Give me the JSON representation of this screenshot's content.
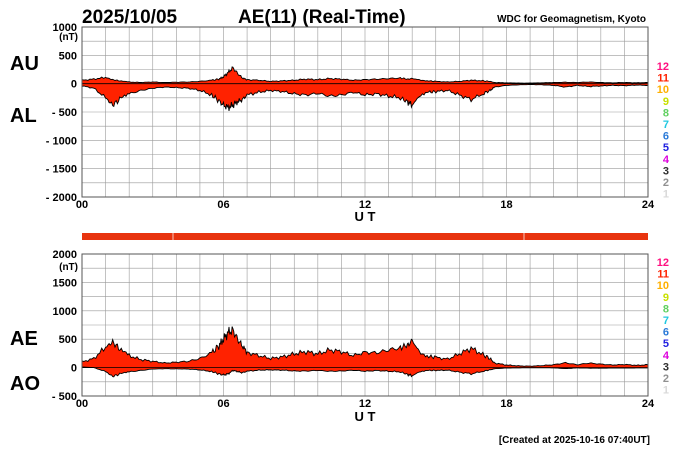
{
  "header": {
    "date": "2025/10/05",
    "title": "AE(11) (Real-Time)",
    "source": "WDC for Geomagnetism, Kyoto"
  },
  "footer": {
    "created": "[Created at 2025-10-16 07:40UT]"
  },
  "colors": {
    "fill": "#ff2200",
    "status_bar": "#e8340f",
    "grid": "#9a9a9a",
    "station_colors": [
      "#d9d9d9",
      "#909090",
      "#303030",
      "#dd00dd",
      "#2020e0",
      "#2a7ad8",
      "#20c8e0",
      "#60d060",
      "#c8e000",
      "#ffb000",
      "#ff2200",
      "#ff1080"
    ]
  },
  "station_count_labels": [
    "1",
    "2",
    "3",
    "4",
    "5",
    "6",
    "7",
    "8",
    "9",
    "10",
    "11",
    "12"
  ],
  "chart_data": [
    {
      "type": "area",
      "name": "AU/AL",
      "left_labels": [
        "AU",
        "AL"
      ],
      "unit": "(nT)",
      "xlabel": "U T",
      "x_ticks": [
        "00",
        "06",
        "12",
        "18",
        "24"
      ],
      "xlim": [
        0,
        24
      ],
      "ylim": [
        -2000,
        1000
      ],
      "y_ticks": [
        1000,
        500,
        0,
        -500,
        -1000,
        -1500,
        -2000
      ],
      "y_tick_labels": [
        "1000",
        "500",
        "0",
        "- 500",
        "- 1000",
        "- 1500",
        "- 2000"
      ],
      "grid": true,
      "x_hours": [
        0,
        0.5,
        1,
        1.3,
        1.6,
        2,
        2.5,
        3,
        3.5,
        4,
        4.5,
        5,
        5.5,
        5.8,
        6,
        6.2,
        6.4,
        6.6,
        6.8,
        7,
        7.5,
        8,
        8.5,
        9,
        9.5,
        10,
        10.5,
        11,
        11.5,
        12,
        12.5,
        13,
        13.5,
        13.8,
        14,
        14.3,
        14.7,
        15,
        15.5,
        16,
        16.5,
        17,
        17.3,
        17.5,
        18,
        18.5,
        19,
        19.5,
        20,
        20.5,
        21,
        21.5,
        22,
        22.5,
        23,
        23.5,
        24
      ],
      "series": [
        {
          "label": "AU",
          "values": [
            60,
            80,
            110,
            70,
            50,
            30,
            20,
            30,
            20,
            25,
            30,
            40,
            60,
            80,
            120,
            200,
            280,
            180,
            100,
            70,
            60,
            40,
            50,
            60,
            80,
            70,
            90,
            80,
            60,
            70,
            80,
            90,
            100,
            80,
            90,
            70,
            50,
            40,
            30,
            40,
            60,
            50,
            40,
            20,
            15,
            10,
            10,
            15,
            20,
            25,
            20,
            30,
            20,
            15,
            20,
            15,
            20
          ]
        },
        {
          "label": "AL",
          "values": [
            -40,
            -80,
            -250,
            -380,
            -280,
            -180,
            -120,
            -80,
            -60,
            -70,
            -80,
            -120,
            -200,
            -300,
            -380,
            -420,
            -380,
            -320,
            -280,
            -200,
            -150,
            -120,
            -140,
            -180,
            -200,
            -170,
            -220,
            -200,
            -150,
            -200,
            -180,
            -220,
            -250,
            -320,
            -380,
            -220,
            -150,
            -140,
            -120,
            -200,
            -280,
            -180,
            -120,
            -60,
            -30,
            -20,
            -15,
            -20,
            -30,
            -60,
            -30,
            -50,
            -40,
            -30,
            -35,
            -25,
            -30
          ]
        }
      ]
    },
    {
      "type": "area",
      "name": "AE/AO",
      "left_labels": [
        "AE",
        "AO"
      ],
      "unit": "(nT)",
      "xlabel": "U T",
      "x_ticks": [
        "00",
        "06",
        "12",
        "18",
        "24"
      ],
      "xlim": [
        0,
        24
      ],
      "ylim": [
        -500,
        2000
      ],
      "y_ticks": [
        2000,
        1500,
        1000,
        500,
        0,
        -500
      ],
      "y_tick_labels": [
        "2000",
        "1500",
        "1000",
        "500",
        "0",
        "- 500"
      ],
      "grid": true,
      "x_hours": [
        0,
        0.5,
        1,
        1.3,
        1.6,
        2,
        2.5,
        3,
        3.5,
        4,
        4.5,
        5,
        5.5,
        5.8,
        6,
        6.2,
        6.4,
        6.6,
        6.8,
        7,
        7.5,
        8,
        8.5,
        9,
        9.5,
        10,
        10.5,
        11,
        11.5,
        12,
        12.5,
        13,
        13.5,
        13.8,
        14,
        14.3,
        14.7,
        15,
        15.5,
        16,
        16.5,
        17,
        17.3,
        17.5,
        18,
        18.5,
        19,
        19.5,
        20,
        20.5,
        21,
        21.5,
        22,
        22.5,
        23,
        23.5,
        24
      ],
      "series": [
        {
          "label": "AE",
          "values": [
            100,
            160,
            360,
            450,
            330,
            210,
            140,
            110,
            80,
            95,
            110,
            160,
            260,
            380,
            500,
            620,
            660,
            500,
            380,
            270,
            210,
            160,
            190,
            240,
            280,
            240,
            310,
            280,
            210,
            270,
            260,
            310,
            350,
            400,
            470,
            290,
            200,
            180,
            150,
            240,
            340,
            230,
            160,
            80,
            45,
            30,
            25,
            35,
            50,
            85,
            50,
            80,
            60,
            45,
            55,
            40,
            50
          ]
        },
        {
          "label": "AO",
          "values": [
            10,
            0,
            -70,
            -155,
            -115,
            -75,
            -50,
            -25,
            -20,
            -22,
            -25,
            -40,
            -70,
            -110,
            -130,
            -110,
            -50,
            -70,
            -90,
            -65,
            -45,
            -40,
            -45,
            -60,
            -60,
            -50,
            -65,
            -60,
            -45,
            -65,
            -50,
            -65,
            -75,
            -120,
            -145,
            -75,
            -50,
            -50,
            -45,
            -80,
            -110,
            -65,
            -40,
            -20,
            -8,
            -5,
            -3,
            -3,
            -5,
            -18,
            -5,
            -10,
            -10,
            -8,
            -8,
            -5,
            -5
          ]
        }
      ]
    }
  ]
}
